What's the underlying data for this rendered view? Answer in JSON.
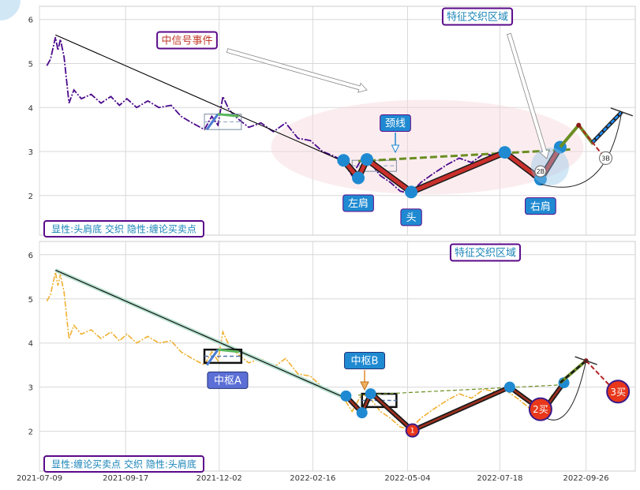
{
  "chart_data": [
    {
      "panel": "top",
      "type": "line",
      "ylim": [
        1.1,
        6.3
      ],
      "yticks": [
        2,
        3,
        4,
        5,
        6
      ],
      "grid": true,
      "price": [
        [
          "2021-07-15",
          4.95
        ],
        [
          "2021-07-18",
          5.1
        ],
        [
          "2021-07-22",
          5.6
        ],
        [
          "2021-07-24",
          5.3
        ],
        [
          "2021-07-26",
          5.55
        ],
        [
          "2021-07-29",
          5.15
        ],
        [
          "2021-08-02",
          4.1
        ],
        [
          "2021-08-06",
          4.4
        ],
        [
          "2021-08-12",
          4.2
        ],
        [
          "2021-08-20",
          4.3
        ],
        [
          "2021-08-28",
          4.1
        ],
        [
          "2021-09-05",
          4.25
        ],
        [
          "2021-09-12",
          4.05
        ],
        [
          "2021-09-18",
          4.2
        ],
        [
          "2021-09-26",
          4.0
        ],
        [
          "2021-10-05",
          4.15
        ],
        [
          "2021-10-14",
          4.0
        ],
        [
          "2021-10-24",
          4.05
        ],
        [
          "2021-11-01",
          3.8
        ],
        [
          "2021-11-10",
          3.65
        ],
        [
          "2021-11-20",
          3.5
        ],
        [
          "2021-11-26",
          3.8
        ],
        [
          "2021-12-01",
          3.6
        ],
        [
          "2021-12-05",
          4.25
        ],
        [
          "2021-12-10",
          3.95
        ],
        [
          "2021-12-17",
          3.75
        ],
        [
          "2021-12-26",
          3.55
        ],
        [
          "2022-01-05",
          3.65
        ],
        [
          "2022-01-15",
          3.45
        ],
        [
          "2022-01-25",
          3.65
        ],
        [
          "2022-02-04",
          3.3
        ],
        [
          "2022-02-14",
          3.25
        ],
        [
          "2022-02-24",
          3.0
        ],
        [
          "2022-03-05",
          2.9
        ],
        [
          "2022-03-12",
          2.8
        ],
        [
          "2022-03-20",
          2.45
        ],
        [
          "2022-03-28",
          2.85
        ],
        [
          "2022-04-05",
          2.7
        ],
        [
          "2022-04-12",
          2.45
        ],
        [
          "2022-04-20",
          2.3
        ],
        [
          "2022-04-28",
          2.1
        ],
        [
          "2022-05-06",
          2.05
        ],
        [
          "2022-05-15",
          2.3
        ],
        [
          "2022-05-25",
          2.5
        ],
        [
          "2022-06-05",
          2.7
        ],
        [
          "2022-06-15",
          2.85
        ],
        [
          "2022-06-25",
          2.75
        ],
        [
          "2022-07-05",
          2.95
        ],
        [
          "2022-07-14",
          2.9
        ],
        [
          "2022-07-22",
          2.95
        ],
        [
          "2022-08-01",
          2.75
        ],
        [
          "2022-08-10",
          2.55
        ],
        [
          "2022-08-16",
          2.35
        ],
        [
          "2022-08-24",
          2.55
        ],
        [
          "2022-08-30",
          2.85
        ]
      ],
      "trend_line": [
        [
          "2021-07-22",
          5.65
        ],
        [
          "2022-03-15",
          2.75
        ]
      ],
      "zones": [
        {
          "x0": "2021-11-20",
          "x1": "2021-12-20",
          "y0": 3.5,
          "y1": 3.85
        },
        {
          "x0": "2022-03-20",
          "x1": "2022-04-25",
          "y0": 2.55,
          "y1": 2.8
        }
      ],
      "zone_strokes": [
        [
          "2021-11-22",
          3.5
        ],
        [
          "2021-12-01",
          3.85
        ],
        [
          "2021-12-18",
          3.8
        ]
      ],
      "head_shoulders_points": [
        [
          "2022-03-13",
          2.8
        ],
        [
          "2022-03-25",
          2.4
        ],
        [
          "2022-04-01",
          2.82
        ],
        [
          "2022-05-07",
          2.08
        ],
        [
          "2022-07-22",
          2.98
        ],
        [
          "2022-08-20",
          2.37
        ],
        [
          "2022-09-05",
          3.1
        ]
      ],
      "neckline": [
        [
          "2022-03-25",
          2.78
        ],
        [
          "2022-09-15",
          3.05
        ]
      ],
      "forecast": [
        [
          "2022-09-05",
          3.1
        ],
        [
          "2022-09-20",
          3.6
        ],
        [
          "2022-10-01",
          3.2
        ],
        [
          "2022-10-25",
          3.9
        ]
      ],
      "forecast_alt": [
        [
          "2022-09-20",
          3.6
        ],
        [
          "2022-10-10",
          2.9
        ]
      ],
      "sell_bar": [
        "2022-10-25",
        3.9
      ],
      "signal_2b": [
        "2022-08-20",
        2.55
      ],
      "signal_3b": [
        "2022-10-12",
        2.85
      ],
      "annotations": {
        "event": "中信号事件",
        "zone_title": "特征交织区域",
        "neckline": "颈线",
        "left_shoulder": "左肩",
        "head": "头",
        "right_shoulder": "右肩",
        "b2": "2B",
        "b3": "3B",
        "footer": "显性:头肩底 交织 隐性:缠论买卖点"
      }
    },
    {
      "panel": "bottom",
      "type": "line",
      "ylim": [
        1.1,
        6.3
      ],
      "yticks": [
        2,
        3,
        4,
        5,
        6
      ],
      "grid": true,
      "price": [
        [
          "2021-07-15",
          4.95
        ],
        [
          "2021-07-18",
          5.1
        ],
        [
          "2021-07-22",
          5.6
        ],
        [
          "2021-07-24",
          5.3
        ],
        [
          "2021-07-26",
          5.55
        ],
        [
          "2021-07-29",
          5.15
        ],
        [
          "2021-08-02",
          4.1
        ],
        [
          "2021-08-06",
          4.4
        ],
        [
          "2021-08-12",
          4.2
        ],
        [
          "2021-08-20",
          4.3
        ],
        [
          "2021-08-28",
          4.1
        ],
        [
          "2021-09-05",
          4.25
        ],
        [
          "2021-09-12",
          4.05
        ],
        [
          "2021-09-18",
          4.2
        ],
        [
          "2021-09-26",
          4.0
        ],
        [
          "2021-10-05",
          4.15
        ],
        [
          "2021-10-14",
          4.0
        ],
        [
          "2021-10-24",
          4.05
        ],
        [
          "2021-11-01",
          3.8
        ],
        [
          "2021-11-10",
          3.65
        ],
        [
          "2021-11-20",
          3.5
        ],
        [
          "2021-11-26",
          3.8
        ],
        [
          "2021-12-01",
          3.6
        ],
        [
          "2021-12-05",
          4.25
        ],
        [
          "2021-12-10",
          3.95
        ],
        [
          "2021-12-17",
          3.75
        ],
        [
          "2021-12-26",
          3.55
        ],
        [
          "2022-01-05",
          3.65
        ],
        [
          "2022-01-15",
          3.45
        ],
        [
          "2022-01-25",
          3.65
        ],
        [
          "2022-02-04",
          3.3
        ],
        [
          "2022-02-14",
          3.25
        ],
        [
          "2022-02-24",
          3.0
        ],
        [
          "2022-03-05",
          2.9
        ],
        [
          "2022-03-12",
          2.8
        ],
        [
          "2022-03-20",
          2.45
        ],
        [
          "2022-03-28",
          2.85
        ],
        [
          "2022-04-05",
          2.7
        ],
        [
          "2022-04-12",
          2.45
        ],
        [
          "2022-04-20",
          2.3
        ],
        [
          "2022-04-28",
          2.1
        ],
        [
          "2022-05-06",
          2.05
        ],
        [
          "2022-05-15",
          2.3
        ],
        [
          "2022-05-25",
          2.5
        ],
        [
          "2022-06-05",
          2.7
        ],
        [
          "2022-06-15",
          2.85
        ],
        [
          "2022-06-25",
          2.75
        ],
        [
          "2022-07-05",
          2.95
        ],
        [
          "2022-07-14",
          2.9
        ],
        [
          "2022-07-22",
          2.95
        ],
        [
          "2022-08-01",
          2.75
        ],
        [
          "2022-08-10",
          2.55
        ],
        [
          "2022-08-16",
          2.35
        ],
        [
          "2022-08-24",
          2.55
        ],
        [
          "2022-08-30",
          2.85
        ]
      ],
      "trend_line": [
        [
          "2021-07-22",
          5.65
        ],
        [
          "2022-03-15",
          2.75
        ]
      ],
      "zones": [
        {
          "x0": "2021-11-20",
          "x1": "2021-12-20",
          "y0": 3.55,
          "y1": 3.85
        },
        {
          "x0": "2022-03-28",
          "x1": "2022-04-25",
          "y0": 2.55,
          "y1": 2.85
        }
      ],
      "zone_strokes": [
        [
          "2021-11-22",
          3.5
        ],
        [
          "2021-12-01",
          3.85
        ],
        [
          "2021-12-18",
          3.8
        ]
      ],
      "chan_points": [
        [
          "2022-03-15",
          2.8
        ],
        [
          "2022-03-28",
          2.42
        ],
        [
          "2022-04-04",
          2.85
        ],
        [
          "2022-04-08",
          2.78
        ],
        [
          "2022-05-08",
          2.02
        ],
        [
          "2022-07-26",
          3.0
        ],
        [
          "2022-08-22",
          2.45
        ],
        [
          "2022-09-08",
          3.1
        ]
      ],
      "neckline": [
        [
          "2022-03-25",
          2.82
        ],
        [
          "2022-09-05",
          3.05
        ]
      ],
      "forecast": [
        [
          "2022-09-05",
          3.1
        ],
        [
          "2022-09-26",
          3.6
        ]
      ],
      "forecast_alt": [
        [
          "2022-09-26",
          3.6
        ],
        [
          "2022-10-20",
          2.9
        ]
      ],
      "sell_bar": [
        "2022-09-26",
        3.6
      ],
      "signals": [
        {
          "label": "1",
          "x": "2022-05-08",
          "y": 2.02,
          "size": "small"
        },
        {
          "label": "2买",
          "x": "2022-08-20",
          "y": 2.5,
          "size": "large"
        },
        {
          "label": "3买",
          "x": "2022-10-22",
          "y": 2.9,
          "size": "large"
        }
      ],
      "annotations": {
        "pivot_a": "中枢A",
        "pivot_b": "中枢B",
        "zone_title": "特征交织区域",
        "footer": "显性:缠论买卖点 交织 隐性:头肩底"
      }
    }
  ],
  "x_axis": {
    "range": [
      "2021-07-09",
      "2022-11-05"
    ],
    "ticks": [
      "2021-07-09",
      "2021-09-17",
      "2021-12-02",
      "2022-02-16",
      "2022-05-04",
      "2022-07-18",
      "2022-09-26"
    ]
  },
  "colors": {
    "top_price": "#4b0a8c",
    "bottom_price": "#f0b030",
    "trend": "#000000",
    "neckline": "#6b8e23",
    "hs_stroke": "#c9302c",
    "node": "#1f8ad1",
    "label_bg": "#1f8ad1",
    "frame": "#5a0a8a",
    "event_text": "#c0392b",
    "zone_text": "#1a84b8",
    "footer_text": "#1a84b8",
    "forecast_red": "#b22222",
    "forecast_blue": "#1e90ff",
    "signal_fill": "#e8371a"
  }
}
